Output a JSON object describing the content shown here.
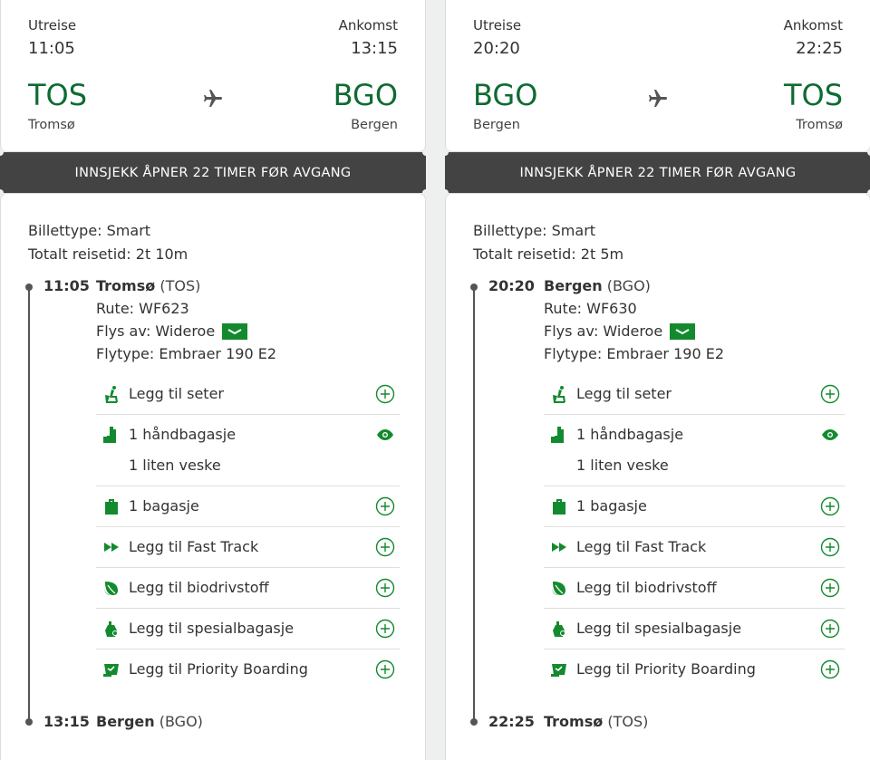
{
  "colors": {
    "brand_green": "#0e6b32",
    "icon_green": "#138a2e",
    "banner_bg": "#434343"
  },
  "flights": [
    {
      "dep_label": "Utreise",
      "arr_label": "Ankomst",
      "dep_time": "11:05",
      "arr_time": "13:15",
      "dep_code": "TOS",
      "arr_code": "BGO",
      "dep_city": "Tromsø",
      "arr_city": "Bergen",
      "banner": "INNSJEKK ÅPNER 22 TIMER FØR AVGANG",
      "ticket_type": "Billettype: Smart",
      "total_time": "Totalt reisetid: 2t 10m",
      "seg_dep_time": "11:05",
      "seg_dep_city": "Tromsø",
      "seg_dep_code": "(TOS)",
      "route": "Rute: WF623",
      "operated_by": "Flys av: Wideroe",
      "aircraft": "Flytype: Embraer 190 E2",
      "seg_arr_time": "13:15",
      "seg_arr_city": "Bergen",
      "seg_arr_code": "(BGO)"
    },
    {
      "dep_label": "Utreise",
      "arr_label": "Ankomst",
      "dep_time": "20:20",
      "arr_time": "22:25",
      "dep_code": "BGO",
      "arr_code": "TOS",
      "dep_city": "Bergen",
      "arr_city": "Tromsø",
      "banner": "INNSJEKK ÅPNER 22 TIMER FØR AVGANG",
      "ticket_type": "Billettype: Smart",
      "total_time": "Totalt reisetid: 2t 5m",
      "seg_dep_time": "20:20",
      "seg_dep_city": "Bergen",
      "seg_dep_code": "(BGO)",
      "route": "Rute: WF630",
      "operated_by": "Flys av: Wideroe",
      "aircraft": "Flytype: Embraer 190 E2",
      "seg_arr_time": "22:25",
      "seg_arr_city": "Tromsø",
      "seg_arr_code": "(TOS)"
    }
  ],
  "services": [
    {
      "label": "Legg til seter",
      "icon": "seat-icon",
      "action": "add-icon"
    },
    {
      "label": "1 håndbagasje",
      "sub": "1 liten veske",
      "icon": "hand-baggage-icon",
      "action": "eye-icon"
    },
    {
      "label": "1 bagasje",
      "icon": "suitcase-icon",
      "action": "add-icon"
    },
    {
      "label": "Legg til Fast Track",
      "icon": "fast-forward-icon",
      "action": "add-icon"
    },
    {
      "label": "Legg til biodrivstoff",
      "icon": "leaf-icon",
      "action": "add-icon"
    },
    {
      "label": "Legg til spesialbagasje",
      "icon": "special-baggage-icon",
      "action": "add-icon"
    },
    {
      "label": "Legg til Priority Boarding",
      "icon": "priority-boarding-icon",
      "action": "add-icon"
    }
  ]
}
